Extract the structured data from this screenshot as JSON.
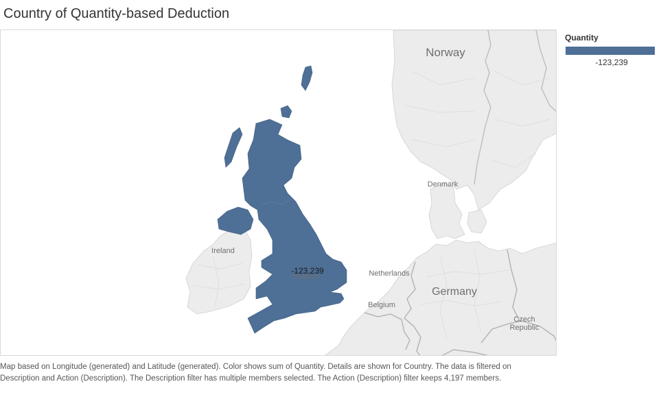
{
  "title": "Country of Quantity-based Deduction",
  "legend": {
    "title": "Quantity",
    "value_label": "-123,239",
    "color": "#4e6f96"
  },
  "map": {
    "land_color": "#ececec",
    "water_color": "#ffffff",
    "highlight": {
      "country": "United Kingdom",
      "value_label": "-123,239",
      "color": "#4e6f96"
    },
    "labels": {
      "norway": "Norway",
      "denmark": "Denmark",
      "ireland": "Ireland",
      "netherlands": "Netherlands",
      "belgium": "Belgium",
      "germany": "Germany",
      "czech_line1": "Czech",
      "czech_line2": "Republic",
      "uk": "Kingdom"
    }
  },
  "caption": "Map based on Longitude (generated) and Latitude (generated).  Color shows sum of Quantity.  Details are shown for Country. The data is filtered on Description and Action (Description). The Description filter has multiple members selected. The Action (Description) filter keeps 4,197 members."
}
